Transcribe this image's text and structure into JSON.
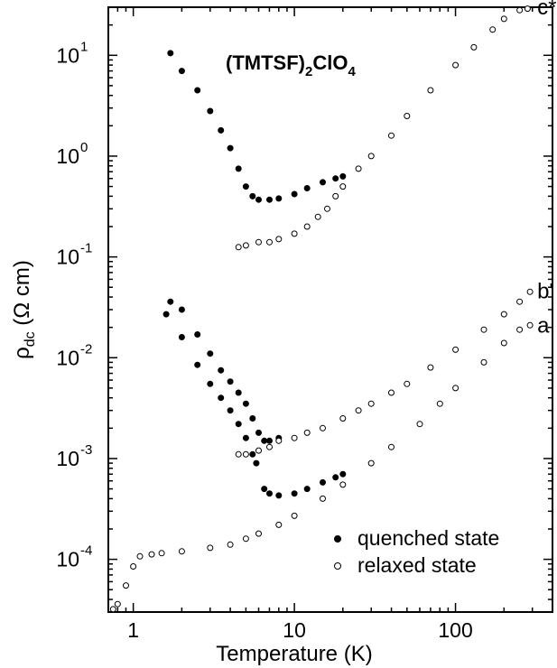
{
  "chart_data": {
    "type": "scatter",
    "title_parts": {
      "base": "(TMTSF)",
      "sub1": "2",
      "mid": "ClO",
      "sub2": "4"
    },
    "xlabel": "Temperature (K)",
    "ylabel_parts": {
      "pre": "ρ",
      "sub": "dc",
      "post": " (Ω cm)"
    },
    "xscale": "log",
    "yscale": "log",
    "xlim": [
      0.7,
      400
    ],
    "ylim": [
      3e-05,
      30
    ],
    "x_ticks": [
      {
        "value": 1,
        "label": "1"
      },
      {
        "value": 10,
        "label": "10"
      },
      {
        "value": 100,
        "label": "100"
      }
    ],
    "y_ticks": [
      {
        "value": 0.0001,
        "mant": "10",
        "exp": "-4"
      },
      {
        "value": 0.001,
        "mant": "10",
        "exp": "-3"
      },
      {
        "value": 0.01,
        "mant": "10",
        "exp": "-2"
      },
      {
        "value": 0.1,
        "mant": "10",
        "exp": "-1"
      },
      {
        "value": 1,
        "mant": "10",
        "exp": "0"
      },
      {
        "value": 10,
        "mant": "10",
        "exp": "1"
      }
    ],
    "curve_labels": [
      {
        "text": "c*",
        "x": 290,
        "y": 30
      },
      {
        "text": "b'",
        "x": 290,
        "y": 0.046
      },
      {
        "text": "a",
        "x": 290,
        "y": 0.021
      }
    ],
    "legend": {
      "position": "bottom-right",
      "entries": [
        "quenched state",
        "relaxed state"
      ]
    },
    "series": [
      {
        "name": "quenched state",
        "marker": "filled-circle",
        "points": [
          [
            1.7,
            10.5
          ],
          [
            2,
            7
          ],
          [
            2.5,
            4.5
          ],
          [
            3,
            2.8
          ],
          [
            3.5,
            1.8
          ],
          [
            4,
            1.2
          ],
          [
            4.5,
            0.75
          ],
          [
            5,
            0.5
          ],
          [
            5.5,
            0.4
          ],
          [
            6,
            0.37
          ],
          [
            7,
            0.37
          ],
          [
            8,
            0.38
          ],
          [
            10,
            0.42
          ],
          [
            12,
            0.48
          ],
          [
            15,
            0.55
          ],
          [
            18,
            0.6
          ],
          [
            20,
            0.63
          ],
          [
            1.7,
            0.036
          ],
          [
            2,
            0.03
          ],
          [
            2.5,
            0.017
          ],
          [
            3,
            0.011
          ],
          [
            3.5,
            0.0075
          ],
          [
            4,
            0.0058
          ],
          [
            4.5,
            0.0045
          ],
          [
            5,
            0.0035
          ],
          [
            5.5,
            0.0025
          ],
          [
            6,
            0.0018
          ],
          [
            6.5,
            0.0015
          ],
          [
            7,
            0.0015
          ],
          [
            8,
            0.0016
          ],
          [
            1.6,
            0.027
          ],
          [
            2,
            0.016
          ],
          [
            2.5,
            0.0085
          ],
          [
            3,
            0.0055
          ],
          [
            3.5,
            0.004
          ],
          [
            4,
            0.003
          ],
          [
            4.5,
            0.0022
          ],
          [
            5,
            0.0016
          ],
          [
            5.5,
            0.0011
          ],
          [
            5.8,
            0.0009
          ],
          [
            6.5,
            0.0005
          ],
          [
            7,
            0.00045
          ],
          [
            8,
            0.00043
          ],
          [
            10,
            0.00045
          ],
          [
            12,
            0.0005
          ],
          [
            15,
            0.00058
          ],
          [
            18,
            0.00065
          ],
          [
            20,
            0.0007
          ]
        ]
      },
      {
        "name": "relaxed state",
        "marker": "open-circle",
        "points": [
          [
            4.5,
            0.125
          ],
          [
            5,
            0.13
          ],
          [
            6,
            0.14
          ],
          [
            7,
            0.14
          ],
          [
            8,
            0.15
          ],
          [
            10,
            0.17
          ],
          [
            12,
            0.2
          ],
          [
            14,
            0.25
          ],
          [
            16,
            0.3
          ],
          [
            18,
            0.4
          ],
          [
            20,
            0.5
          ],
          [
            25,
            0.75
          ],
          [
            30,
            1
          ],
          [
            40,
            1.6
          ],
          [
            50,
            2.5
          ],
          [
            70,
            4.5
          ],
          [
            100,
            8
          ],
          [
            130,
            12
          ],
          [
            170,
            18
          ],
          [
            200,
            23
          ],
          [
            250,
            28
          ],
          [
            280,
            29
          ],
          [
            4.5,
            0.0011
          ],
          [
            5,
            0.0011
          ],
          [
            6,
            0.0012
          ],
          [
            7,
            0.0013
          ],
          [
            8,
            0.0015
          ],
          [
            10,
            0.0016
          ],
          [
            12,
            0.0018
          ],
          [
            15,
            0.002
          ],
          [
            20,
            0.0025
          ],
          [
            25,
            0.003
          ],
          [
            30,
            0.0035
          ],
          [
            40,
            0.0045
          ],
          [
            50,
            0.0055
          ],
          [
            70,
            0.008
          ],
          [
            100,
            0.012
          ],
          [
            150,
            0.019
          ],
          [
            200,
            0.027
          ],
          [
            250,
            0.036
          ],
          [
            290,
            0.045
          ],
          [
            0.75,
            3.2e-05
          ],
          [
            0.8,
            3.6e-05
          ],
          [
            0.9,
            5.5e-05
          ],
          [
            1,
            8.5e-05
          ],
          [
            1.1,
            0.000107
          ],
          [
            1.3,
            0.000112
          ],
          [
            1.5,
            0.000115
          ],
          [
            2,
            0.00012
          ],
          [
            3,
            0.00013
          ],
          [
            4,
            0.00014
          ],
          [
            5,
            0.00016
          ],
          [
            6,
            0.00018
          ],
          [
            8,
            0.00022
          ],
          [
            10,
            0.00027
          ],
          [
            15,
            0.0004
          ],
          [
            20,
            0.00055
          ],
          [
            30,
            0.0009
          ],
          [
            40,
            0.0013
          ],
          [
            60,
            0.0022
          ],
          [
            80,
            0.0035
          ],
          [
            100,
            0.005
          ],
          [
            150,
            0.009
          ],
          [
            200,
            0.014
          ],
          [
            250,
            0.019
          ],
          [
            290,
            0.021
          ]
        ]
      }
    ]
  }
}
